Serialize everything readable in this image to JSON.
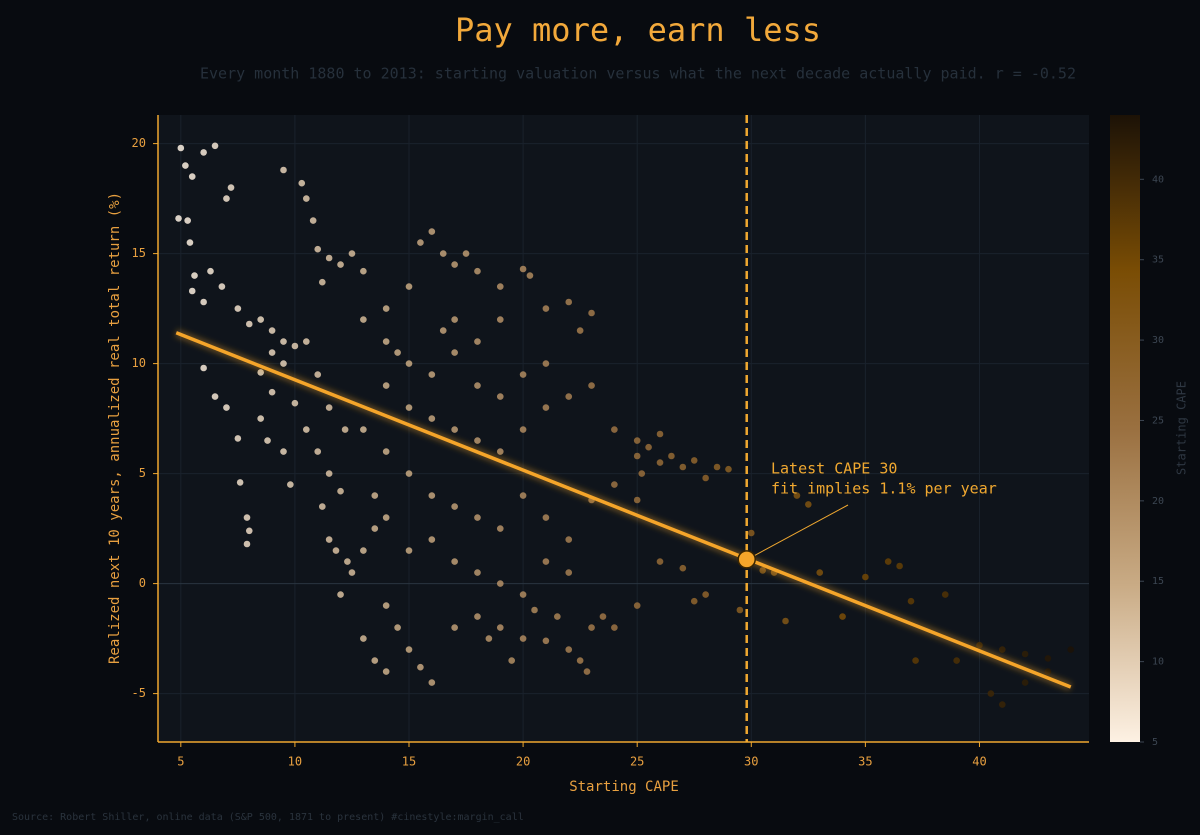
{
  "chart_data": {
    "type": "scatter",
    "title": "Pay more, earn less",
    "subtitle": "Every month 1880 to 2013: starting valuation versus what the next decade actually paid. r = -0.52",
    "x_label": "Starting CAPE",
    "y_label": "Realized next 10 years, annualized real total return (%)",
    "colorbar_label": "Starting CAPE",
    "source": "Source: Robert Shiller, online data (S&P 500, 1871 to present)  #cinestyle:margin_call",
    "xlim": [
      4.0,
      44.8
    ],
    "ylim": [
      -7.2,
      21.3
    ],
    "xticks": [
      5,
      10,
      15,
      20,
      25,
      30,
      35,
      40
    ],
    "yticks": [
      -5,
      0,
      5,
      10,
      15,
      20
    ],
    "grid": true,
    "clim": [
      5,
      44
    ],
    "cticks": [
      5,
      10,
      15,
      20,
      25,
      30,
      35,
      40
    ],
    "colormap": [
      "#fdf1e3",
      "#c9ab85",
      "#9a7040",
      "#7a4d05",
      "#1c1206"
    ],
    "axis_color": "#f0a830",
    "series": [
      {
        "x": [
          5,
          5.2,
          5.5,
          6,
          6.5,
          5.3,
          5.4,
          5.6,
          6.3,
          6.8,
          7,
          7.2,
          4.9,
          5.5,
          6,
          6.5,
          7,
          7.5,
          7.6,
          7.9,
          7.9,
          8,
          6,
          7.5,
          8,
          8.5,
          9,
          9.5,
          10,
          10.5,
          9,
          9.5,
          8.5,
          9,
          8.5,
          8.8,
          9.5,
          9.8,
          10.5,
          11,
          11.5,
          12,
          10,
          11,
          11.5,
          12.2,
          9.5,
          10.3,
          10.5,
          10.8,
          11,
          11.5,
          12,
          12.5,
          13,
          11.2,
          11.2,
          11.5,
          11.8,
          12.3,
          12.5,
          13,
          13.5,
          12,
          13,
          14,
          14,
          15,
          15.5,
          16,
          16.5,
          17,
          17.5,
          18,
          19,
          20,
          20.3,
          14.5,
          15,
          16,
          17,
          18,
          19,
          21,
          22,
          23,
          22.5,
          14,
          15,
          16,
          17,
          18,
          19,
          20,
          21,
          22,
          23,
          24,
          25,
          13,
          14,
          15,
          16,
          17,
          18,
          19,
          20,
          21,
          22,
          23,
          24,
          13.5,
          14,
          15,
          16,
          17,
          18,
          19,
          20,
          21,
          22,
          14,
          14.5,
          15,
          15.5,
          16,
          13.5,
          13,
          14,
          17,
          18,
          19,
          20,
          21,
          22,
          23,
          22.5,
          21.5,
          20.5,
          19.5,
          18.5,
          23.5,
          18,
          19,
          20,
          21,
          17,
          16.5,
          25,
          25.5,
          26,
          26.5,
          27,
          27.5,
          28,
          26,
          25.2,
          28.5,
          29,
          25,
          26,
          27,
          27.5,
          28,
          29.5,
          30,
          31,
          32,
          32.5,
          33,
          34,
          31.5,
          35,
          36,
          36.5,
          37,
          37.2,
          38.5,
          39,
          40,
          41,
          42,
          43,
          44,
          40.5,
          41,
          42,
          43,
          30.5,
          25,
          24,
          22.8
        ],
        "y": [
          19.8,
          19,
          18.5,
          19.6,
          19.9,
          16.5,
          15.5,
          14,
          14.2,
          13.5,
          17.5,
          18,
          16.6,
          13.3,
          9.8,
          8.5,
          8,
          6.6,
          4.6,
          3,
          1.8,
          2.4,
          12.8,
          12.5,
          11.8,
          12,
          11.5,
          11,
          10.8,
          11,
          10.5,
          10,
          9.6,
          8.7,
          7.5,
          6.5,
          6,
          4.5,
          7,
          6,
          5,
          4.2,
          8.2,
          9.5,
          8,
          7,
          18.8,
          18.2,
          17.5,
          16.5,
          15.2,
          14.8,
          14.5,
          15,
          14.2,
          13.7,
          3.5,
          2,
          1.5,
          1,
          0.5,
          1.5,
          2.5,
          -0.5,
          12,
          12.5,
          11,
          13.5,
          15.5,
          16,
          15,
          14.5,
          15,
          14.2,
          13.5,
          14.3,
          14,
          10.5,
          10,
          9.5,
          10.5,
          11,
          12,
          12.5,
          12.8,
          12.3,
          11.5,
          9,
          8,
          7.5,
          7,
          6.5,
          6,
          7,
          8,
          8.5,
          9,
          7,
          6.5,
          7,
          6,
          5,
          4,
          3.5,
          3,
          2.5,
          4,
          3,
          2,
          3.8,
          4.5,
          4,
          3,
          1.5,
          2,
          1,
          0.5,
          0,
          -0.5,
          1,
          0.5,
          -1,
          -2,
          -3,
          -3.8,
          -4.5,
          -3.5,
          -2.5,
          -4,
          -2,
          -1.5,
          -2,
          -2.5,
          -2.6,
          -3,
          -2,
          -3.5,
          -1.5,
          -1.2,
          -3.5,
          -2.5,
          -1.5,
          9,
          8.5,
          9.5,
          10,
          12,
          11.5,
          5.8,
          6.2,
          5.5,
          5.8,
          5.3,
          5.6,
          4.8,
          6.8,
          5,
          5.3,
          5.2,
          3.8,
          1,
          0.7,
          -0.8,
          -0.5,
          -1.2,
          2.3,
          0.5,
          4,
          3.6,
          0.5,
          -1.5,
          -1.7,
          0.3,
          1,
          0.8,
          -0.8,
          -3.5,
          -0.5,
          -3.5,
          -2.8,
          -3,
          -3.2,
          -3.4,
          -3,
          -5,
          -5.5,
          -4.5,
          -4,
          0.6,
          -1,
          -2,
          -4
        ]
      }
    ],
    "fit": {
      "x": [
        4.8,
        44
      ],
      "y": [
        11.4,
        -4.7
      ],
      "color": "#f5a52a"
    },
    "vline": 29.8,
    "annotation": {
      "x": 29.8,
      "y": 1.1,
      "lines": [
        "Latest CAPE 30",
        "fit implies 1.1% per year"
      ]
    }
  }
}
